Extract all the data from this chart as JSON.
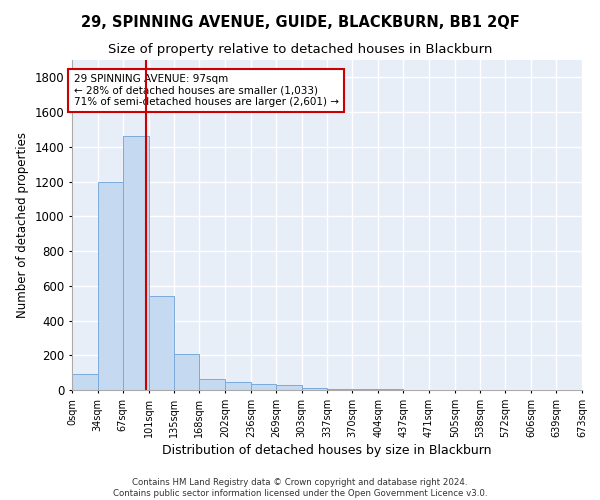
{
  "title": "29, SPINNING AVENUE, GUIDE, BLACKBURN, BB1 2QF",
  "subtitle": "Size of property relative to detached houses in Blackburn",
  "xlabel": "Distribution of detached houses by size in Blackburn",
  "ylabel": "Number of detached properties",
  "footer_line1": "Contains HM Land Registry data © Crown copyright and database right 2024.",
  "footer_line2": "Contains public sector information licensed under the Open Government Licence v3.0.",
  "bin_edges": [
    0,
    34,
    67,
    101,
    135,
    168,
    202,
    236,
    269,
    303,
    337,
    370,
    404,
    437,
    471,
    505,
    538,
    572,
    606,
    639,
    673
  ],
  "bin_counts": [
    90,
    1200,
    1460,
    540,
    205,
    65,
    45,
    35,
    28,
    10,
    8,
    5,
    3,
    2,
    1,
    1,
    0,
    0,
    0,
    0
  ],
  "bar_color": "#c5d9f0",
  "bar_edge_color": "#7aabdc",
  "property_size": 97,
  "vline_color": "#cc0000",
  "annotation_line1": "29 SPINNING AVENUE: 97sqm",
  "annotation_line2": "← 28% of detached houses are smaller (1,033)",
  "annotation_line3": "71% of semi-detached houses are larger (2,601) →",
  "annotation_box_color": "#cc0000",
  "ylim": [
    0,
    1900
  ],
  "yticks": [
    0,
    200,
    400,
    600,
    800,
    1000,
    1200,
    1400,
    1600,
    1800
  ],
  "bg_color": "#ffffff",
  "plot_bg_color": "#e8eef8",
  "grid_color": "#ffffff",
  "title_fontsize": 10.5,
  "subtitle_fontsize": 9.5,
  "tick_label_fontsize": 7,
  "ylabel_fontsize": 8.5,
  "xlabel_fontsize": 9
}
